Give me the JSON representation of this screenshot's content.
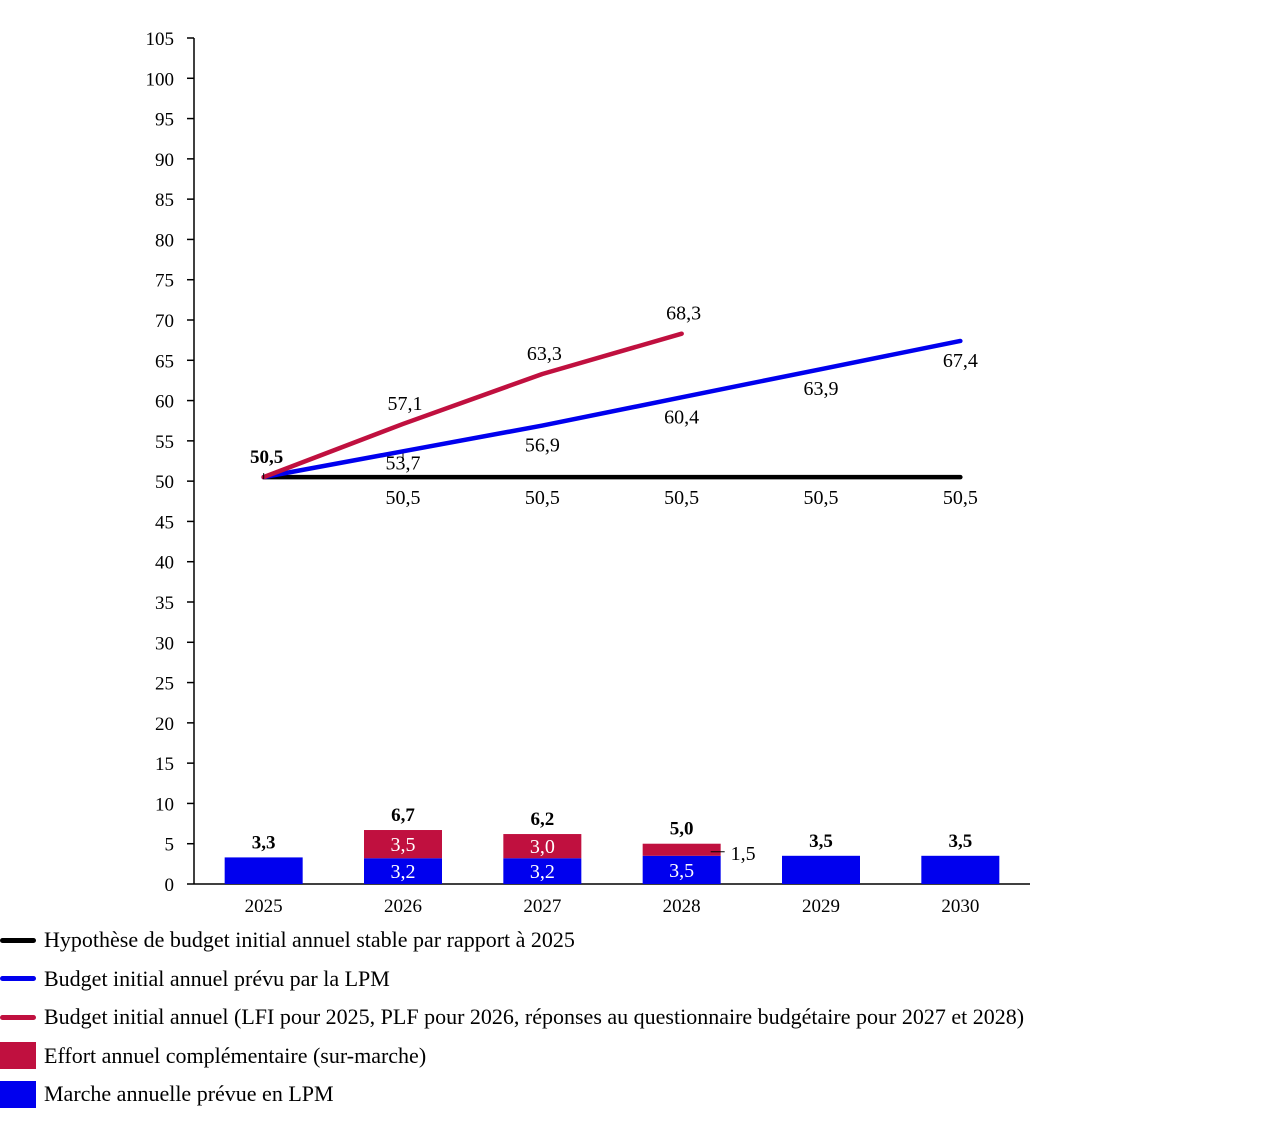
{
  "chart_data": {
    "type": "line+stacked-bar",
    "y_axis": {
      "min": 0,
      "max": 105,
      "step": 5
    },
    "categories": [
      "2025",
      "2026",
      "2027",
      "2028",
      "2029",
      "2030"
    ],
    "colors": {
      "stable": "#000000",
      "lpm": "#0000ee",
      "budget": "#c0103f",
      "effort": "#c0103f",
      "marche": "#0000ee"
    },
    "lines": [
      {
        "key": "stable",
        "name": "Hypothèse de budget initial annuel stable par rapport à 2025",
        "values": [
          50.5,
          50.5,
          50.5,
          50.5,
          50.5,
          50.5
        ],
        "labels": [
          "50,5",
          "50,5",
          "50,5",
          "50,5",
          "50,5",
          "50,5"
        ]
      },
      {
        "key": "lpm",
        "name": "Budget initial annuel prévu par la LPM",
        "values": [
          50.5,
          53.7,
          56.9,
          60.4,
          63.9,
          67.4
        ],
        "labels": [
          "50,5",
          "53,7",
          "56,9",
          "60,4",
          "63,9",
          "67,4"
        ]
      },
      {
        "key": "budget",
        "name": "Budget initial annuel (LFI pour 2025, PLF pour 2026, réponses au questionnaire budgétaire pour 2027 et 2028)",
        "values": [
          50.5,
          57.1,
          63.3,
          68.3,
          null,
          null
        ],
        "labels": [
          "50,5",
          "57,1",
          "63,3",
          "68,3",
          "",
          ""
        ]
      }
    ],
    "bars": [
      {
        "key": "marche",
        "name": "Marche annuelle prévue en LPM",
        "values": [
          3.3,
          3.2,
          3.2,
          3.5,
          3.5,
          3.5
        ],
        "labels": [
          "",
          "3,2",
          "3,2",
          "3,5",
          "",
          ""
        ]
      },
      {
        "key": "effort",
        "name": "Effort annuel complémentaire (sur-marche)",
        "values": [
          0,
          3.5,
          3.0,
          1.5,
          0,
          0
        ],
        "labels": [
          "",
          "3,5",
          "3,0",
          "1,5",
          "",
          ""
        ]
      }
    ],
    "totals": [
      "3,3",
      "6,7",
      "6,2",
      "5,0",
      "3,5",
      "3,5"
    ],
    "legend_placement": "bottom-left",
    "grid": false
  },
  "legend": [
    {
      "key": "stable",
      "type": "line",
      "label": "Hypothèse de budget initial annuel stable par rapport à 2025"
    },
    {
      "key": "lpm",
      "type": "line",
      "label": "Budget initial annuel prévu par la LPM"
    },
    {
      "key": "budget",
      "type": "line",
      "label": "Budget initial annuel (LFI pour 2025, PLF pour 2026, réponses au questionnaire budgétaire pour 2027 et 2028)"
    },
    {
      "key": "effort",
      "type": "box",
      "label": "Effort annuel complémentaire (sur-marche)"
    },
    {
      "key": "marche",
      "type": "box",
      "label": "Marche annuelle prévue en LPM"
    }
  ]
}
